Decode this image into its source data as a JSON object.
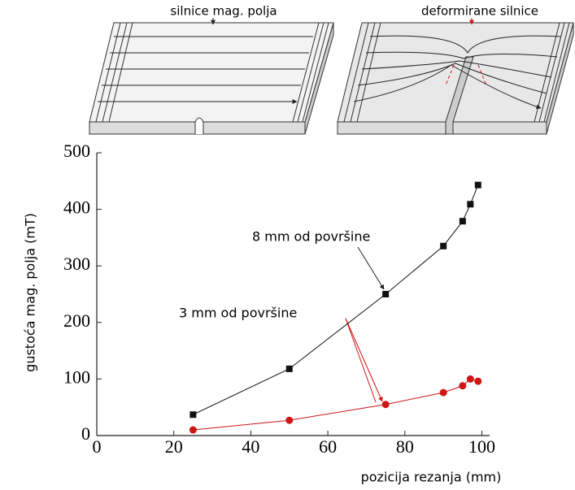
{
  "chart_data": {
    "type": "line",
    "x_label": "pozicija rezanja  (mm)",
    "y_label": "gustoća mag. polja (mT)",
    "xlim": [
      0,
      102
    ],
    "ylim": [
      0,
      500
    ],
    "xticks": [
      0,
      20,
      40,
      60,
      80,
      100
    ],
    "yticks": [
      0,
      100,
      200,
      300,
      400,
      500
    ],
    "series": [
      {
        "color": "#111111",
        "x": [
          25,
          50,
          75,
          90,
          95,
          97,
          99
        ],
        "values": [
          37,
          118,
          250,
          335,
          379,
          409,
          443
        ]
      },
      {
        "color": "#d01515",
        "x": [
          25,
          50,
          75,
          90,
          95,
          97,
          99
        ],
        "values": [
          10,
          27,
          55,
          76,
          88,
          100,
          96
        ]
      }
    ],
    "annotations": [
      "8 mm od površine",
      "3 mm od površine"
    ]
  },
  "diagram": {
    "left_label": "silnice mag. polja",
    "right_label": "deformirane silnice"
  }
}
